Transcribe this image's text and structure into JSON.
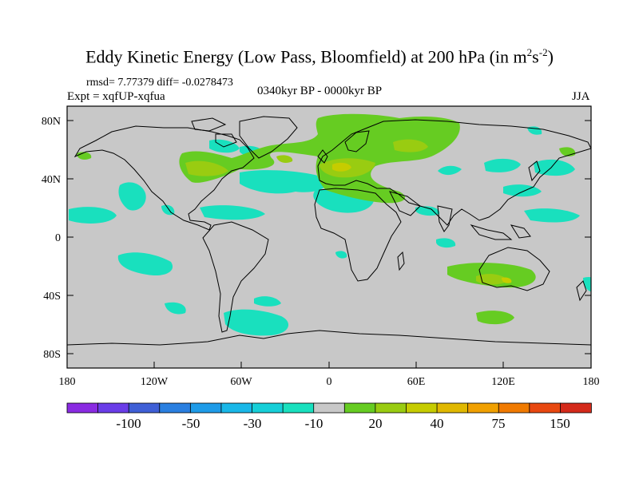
{
  "title": {
    "main": "Eddy Kinetic Energy (Low Pass, Bloomfield) at 200 hPa (in m",
    "exp1": "2",
    "mid": "s",
    "exp2": "-2",
    "close": ")"
  },
  "stats": "rmsd= 7.77379 diff= -0.0278473",
  "experiment": "Expt = xqfUP-xqfua",
  "period": "0340kyr BP - 0000kyr BP",
  "season": "JJA",
  "x_ticks": [
    "180",
    "120W",
    "60W",
    "0",
    "60E",
    "120E",
    "180"
  ],
  "y_ticks": [
    "80N",
    "40N",
    "0",
    "40S",
    "80S"
  ],
  "colorbar": {
    "colors": [
      "#8a2be2",
      "#6a3de8",
      "#3f5fd6",
      "#2a7fe0",
      "#1e9be8",
      "#19b7e8",
      "#16cfd8",
      "#19e0be",
      "#c8c8c8",
      "#66cc22",
      "#99cc11",
      "#c6cc00",
      "#e0b800",
      "#f0a000",
      "#f07a00",
      "#e84810",
      "#d42a1a"
    ],
    "labels": [
      "-100",
      "-50",
      "-30",
      "-10",
      "20",
      "40",
      "75",
      "150"
    ]
  },
  "palette": {
    "land_bg": "#c8c8c8",
    "neg": "#19e0be",
    "pos1": "#66cc22",
    "pos2": "#99cc11",
    "pos3": "#c6cc00"
  }
}
